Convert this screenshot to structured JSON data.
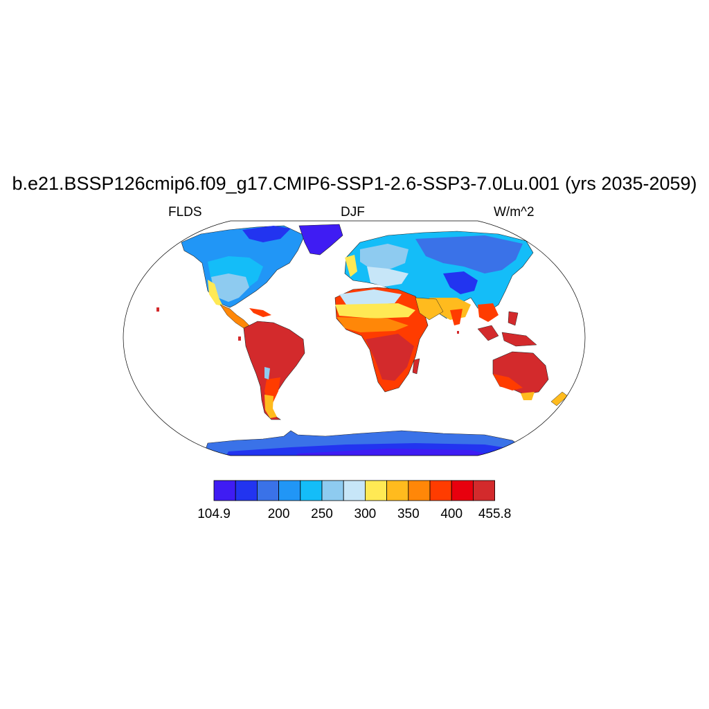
{
  "title": "b.e21.BSSP126cmip6.f09_g17.CMIP6-SSP1-2.6-SSP3-7.0Lu.001 (yrs 2035-2059)",
  "variable": "FLDS",
  "season": "DJF",
  "units": "W/m^2",
  "projection": "robinson",
  "colorbar": {
    "colors": [
      "#3f1cf3",
      "#2234f0",
      "#3a72e8",
      "#2196f6",
      "#14bdf8",
      "#8ecbf0",
      "#c7e6f8",
      "#ffe954",
      "#ffbb1e",
      "#ff8708",
      "#ff3c00",
      "#e8000e",
      "#d32a2c"
    ],
    "labels": [
      {
        "text": "104.9",
        "index": 0
      },
      {
        "text": "200",
        "index": 3
      },
      {
        "text": "250",
        "index": 5
      },
      {
        "text": "300",
        "index": 7
      },
      {
        "text": "350",
        "index": 9
      },
      {
        "text": "400",
        "index": 11
      },
      {
        "text": "455.8",
        "index": 13
      }
    ]
  }
}
